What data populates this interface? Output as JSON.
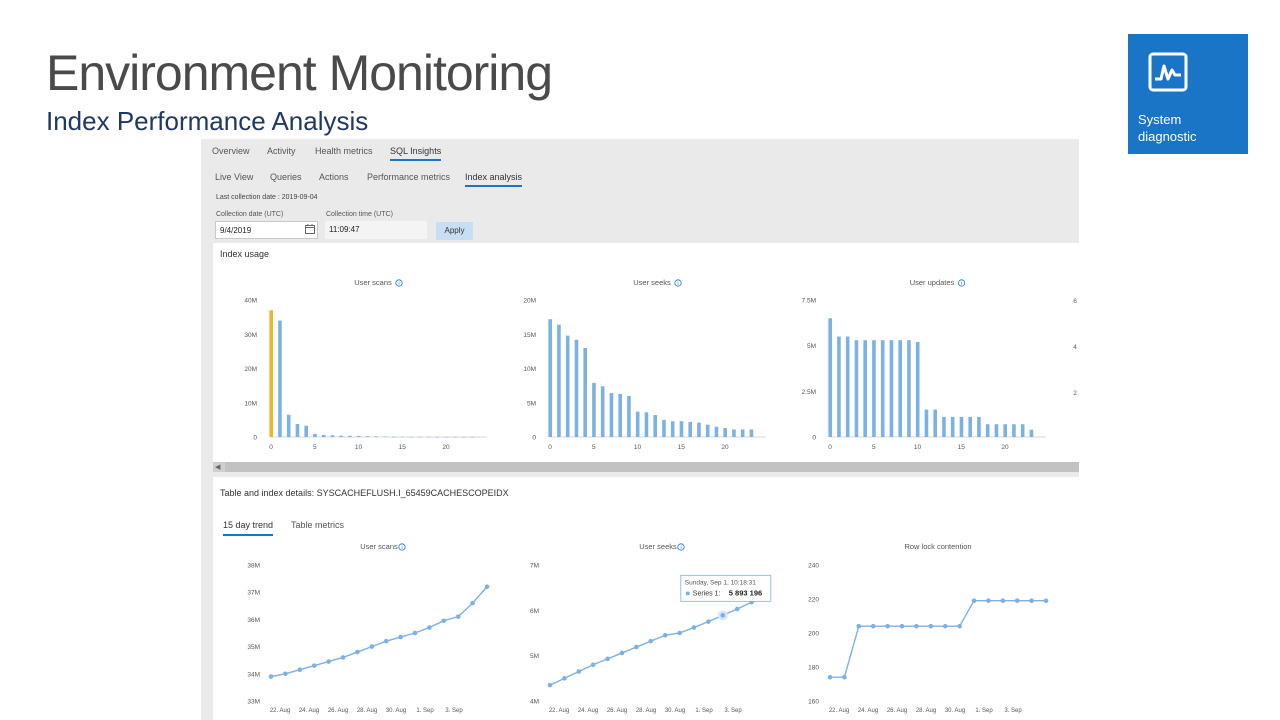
{
  "slide": {
    "title": "Environment Monitoring",
    "subtitle": "Index Performance Analysis",
    "badge": {
      "label_line1": "System",
      "label_line2": "diagnostic",
      "color": "#1b75c7",
      "icon": "pulse-monitor-icon"
    }
  },
  "app": {
    "main_tabs": [
      "Overview",
      "Activity",
      "Health metrics",
      "SQL Insights"
    ],
    "main_active": "SQL Insights",
    "sub_tabs": [
      "Live View",
      "Queries",
      "Actions",
      "Performance metrics",
      "Index analysis"
    ],
    "sub_active": "Index analysis",
    "last_collection": "Last collection date : 2019-09-04",
    "collection_date": {
      "label": "Collection date (UTC)",
      "value": "9/4/2019"
    },
    "collection_time": {
      "label": "Collection time (UTC)",
      "value": "11:09:47"
    },
    "apply_label": "Apply",
    "index_usage": {
      "title": "Index usage"
    },
    "details": {
      "title": "Table and index details: SYSCACHEFLUSH.I_65459CACHESCOPEIDX",
      "tabs": [
        "15 day trend",
        "Table metrics"
      ],
      "active_tab": "15 day trend"
    },
    "tooltip": {
      "date": "Sunday, Sep 1, 10:18:31",
      "series": "Series 1:",
      "value": "5 893 196"
    },
    "accent_color": "#1b75c7",
    "bar_color": "#7cb1e5",
    "highlight_color": "#f0b429"
  },
  "chart_data": [
    {
      "type": "bar",
      "title": "User scans",
      "info_icon": "info-icon",
      "x": [
        0,
        1,
        2,
        3,
        4,
        5,
        6,
        7,
        8,
        9,
        10,
        11,
        12,
        13,
        14,
        15,
        16,
        17,
        18,
        19,
        20,
        21,
        22,
        23
      ],
      "values": [
        37000000,
        34000000,
        6500000,
        3800000,
        3300000,
        900000,
        600000,
        500000,
        400000,
        350000,
        300000,
        250000,
        200000,
        150000,
        100000,
        80000,
        60000,
        50000,
        40000,
        30000,
        25000,
        20000,
        15000,
        10000
      ],
      "highlight_index": 0,
      "ylim": [
        0,
        40000000
      ],
      "y_ticks": [
        "0",
        "10M",
        "20M",
        "30M",
        "40M"
      ],
      "x_ticks": [
        "0",
        "5",
        "10",
        "15",
        "20"
      ]
    },
    {
      "type": "bar",
      "title": "User seeks",
      "info_icon": "info-icon",
      "x": [
        0,
        1,
        2,
        3,
        4,
        5,
        6,
        7,
        8,
        9,
        10,
        11,
        12,
        13,
        14,
        15,
        16,
        17,
        18,
        19,
        20,
        21,
        22,
        23
      ],
      "values": [
        17200000,
        16400000,
        14800000,
        14200000,
        13000000,
        7900000,
        7400000,
        6400000,
        6300000,
        6000000,
        3700000,
        3600000,
        3200000,
        2500000,
        2300000,
        2300000,
        2200000,
        2100000,
        1800000,
        1500000,
        1300000,
        1100000,
        1100000,
        1100000
      ],
      "ylim": [
        0,
        20000000
      ],
      "y_ticks": [
        "0",
        "5M",
        "10M",
        "15M",
        "20M"
      ],
      "x_ticks": [
        "0",
        "5",
        "10",
        "15",
        "20"
      ]
    },
    {
      "type": "bar",
      "title": "User updates",
      "info_icon": "info-icon",
      "x": [
        0,
        1,
        2,
        3,
        4,
        5,
        6,
        7,
        8,
        9,
        10,
        11,
        12,
        13,
        14,
        15,
        16,
        17,
        18,
        19,
        20,
        21,
        22,
        23
      ],
      "values": [
        6500000,
        5500000,
        5500000,
        5300000,
        5300000,
        5300000,
        5300000,
        5300000,
        5300000,
        5300000,
        5200000,
        1500000,
        1500000,
        1100000,
        1100000,
        1100000,
        1100000,
        1100000,
        700000,
        700000,
        700000,
        700000,
        700000,
        400000
      ],
      "ylim": [
        0,
        7500000
      ],
      "y_ticks": [
        "0",
        "2.5M",
        "5M",
        "7.5M"
      ],
      "x_ticks": [
        "0",
        "5",
        "10",
        "15",
        "20"
      ]
    },
    {
      "type": "line",
      "title": "User scans",
      "info_icon": "info-icon",
      "values": [
        33.9,
        34.0,
        34.15,
        34.3,
        34.45,
        34.6,
        34.8,
        35.0,
        35.2,
        35.35,
        35.5,
        35.7,
        35.95,
        36.1,
        36.6,
        37.2
      ],
      "ylim": [
        33,
        38
      ],
      "y_ticks": [
        "33M",
        "34M",
        "35M",
        "36M",
        "37M",
        "38M"
      ],
      "x_ticks": [
        "22. Aug",
        "24. Aug",
        "26. Aug",
        "28. Aug",
        "30. Aug",
        "1. Sep",
        "3. Sep"
      ]
    },
    {
      "type": "line",
      "title": "User seeks",
      "info_icon": "info-icon",
      "values": [
        4.35,
        4.5,
        4.65,
        4.8,
        4.93,
        5.06,
        5.19,
        5.32,
        5.45,
        5.5,
        5.62,
        5.75,
        5.89,
        6.03,
        6.18,
        6.28
      ],
      "highlight_index": 12,
      "ylim": [
        4,
        7
      ],
      "y_ticks": [
        "4M",
        "5M",
        "6M",
        "7M"
      ],
      "x_ticks": [
        "22. Aug",
        "24. Aug",
        "26. Aug",
        "28. Aug",
        "30. Aug",
        "1. Sep",
        "3. Sep"
      ]
    },
    {
      "type": "line",
      "title": "Row lock contention",
      "values": [
        174,
        174,
        204,
        204,
        204,
        204,
        204,
        204,
        204,
        204,
        219,
        219,
        219,
        219,
        219,
        219
      ],
      "ylim": [
        160,
        240
      ],
      "y_ticks": [
        "160",
        "180",
        "200",
        "220",
        "240"
      ],
      "x_ticks": [
        "22. Aug",
        "24. Aug",
        "26. Aug",
        "28. Aug",
        "30. Aug",
        "1. Sep",
        "3. Sep"
      ]
    }
  ]
}
